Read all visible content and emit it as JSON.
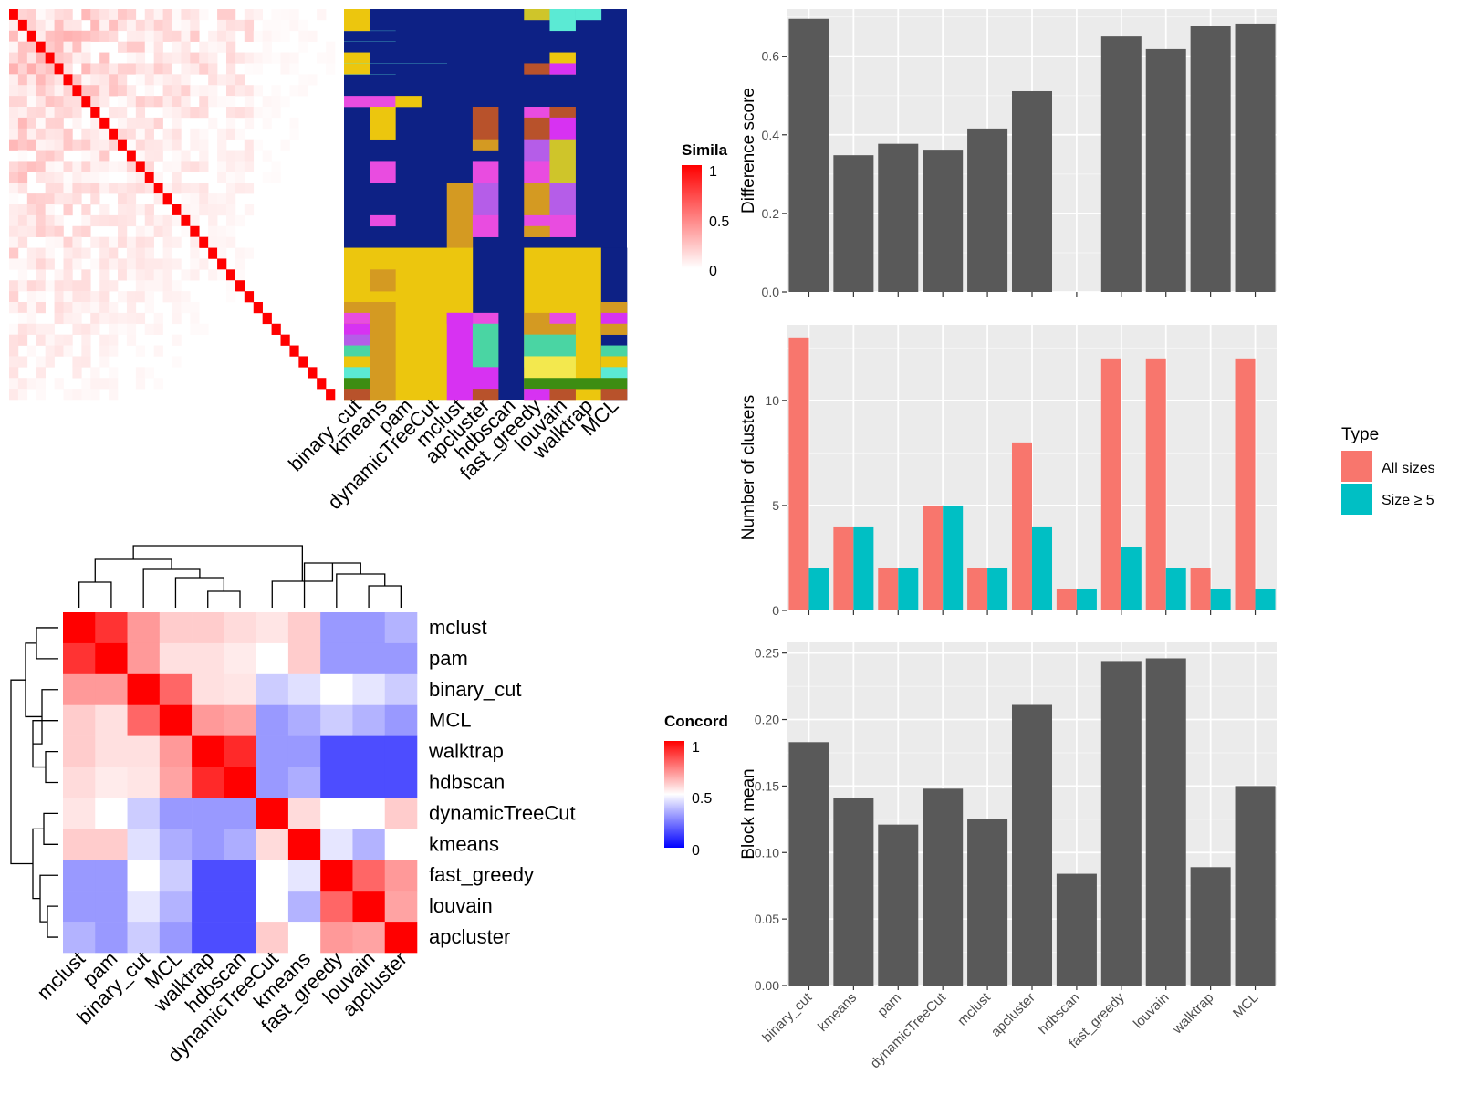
{
  "chart_data": [
    {
      "type": "heatmap",
      "name": "similarity-matrix",
      "legend_title": "Similarity",
      "legend_title_visible": "Simila",
      "legend_ticks": [
        "1",
        "0.5",
        "0"
      ],
      "scale": {
        "low": "#ffffff",
        "high": "#ff0000",
        "min": 0,
        "max": 1
      },
      "n_cells": 36
    },
    {
      "type": "heatmap",
      "name": "cluster-assignments",
      "columns": [
        "binary_cut",
        "kmeans",
        "pam",
        "dynamicTreeCut",
        "mclust",
        "apcluster",
        "hdbscan",
        "fast_greedy",
        "louvain",
        "walktrap",
        "MCL"
      ]
    },
    {
      "type": "heatmap",
      "name": "concordance",
      "legend_title": "Concordance",
      "legend_title_visible": "Concord",
      "legend_ticks": [
        "1",
        "0.5",
        "0"
      ],
      "scale": {
        "low": "#0000ff",
        "mid": "#ffffff",
        "high": "#ff0000",
        "min": 0,
        "max": 1
      },
      "rows": [
        "mclust",
        "pam",
        "binary_cut",
        "MCL",
        "walktrap",
        "hdbscan",
        "dynamicTreeCut",
        "kmeans",
        "fast_greedy",
        "louvain",
        "apcluster"
      ],
      "columns": [
        "mclust",
        "pam",
        "binary_cut",
        "MCL",
        "walktrap",
        "hdbscan",
        "dynamicTreeCut",
        "kmeans",
        "fast_greedy",
        "louvain",
        "apcluster"
      ],
      "values": [
        [
          1.0,
          0.9,
          0.7,
          0.6,
          0.6,
          0.57,
          0.55,
          0.6,
          0.3,
          0.3,
          0.35
        ],
        [
          0.9,
          1.0,
          0.7,
          0.56,
          0.56,
          0.54,
          0.5,
          0.6,
          0.3,
          0.3,
          0.3
        ],
        [
          0.7,
          0.7,
          1.0,
          0.8,
          0.56,
          0.55,
          0.4,
          0.44,
          0.5,
          0.45,
          0.4
        ],
        [
          0.6,
          0.56,
          0.8,
          1.0,
          0.7,
          0.68,
          0.3,
          0.34,
          0.4,
          0.35,
          0.3
        ],
        [
          0.6,
          0.56,
          0.56,
          0.7,
          1.0,
          0.92,
          0.3,
          0.3,
          0.15,
          0.15,
          0.15
        ],
        [
          0.57,
          0.54,
          0.55,
          0.68,
          0.92,
          1.0,
          0.3,
          0.34,
          0.15,
          0.15,
          0.15
        ],
        [
          0.55,
          0.5,
          0.4,
          0.3,
          0.3,
          0.3,
          1.0,
          0.57,
          0.5,
          0.5,
          0.6
        ],
        [
          0.6,
          0.6,
          0.44,
          0.34,
          0.3,
          0.34,
          0.57,
          1.0,
          0.45,
          0.35,
          0.5
        ],
        [
          0.3,
          0.3,
          0.5,
          0.4,
          0.15,
          0.15,
          0.5,
          0.45,
          1.0,
          0.8,
          0.7
        ],
        [
          0.3,
          0.3,
          0.45,
          0.35,
          0.15,
          0.15,
          0.5,
          0.35,
          0.8,
          1.0,
          0.68
        ],
        [
          0.35,
          0.3,
          0.4,
          0.3,
          0.15,
          0.15,
          0.6,
          0.5,
          0.7,
          0.68,
          1.0
        ]
      ]
    },
    {
      "type": "bar",
      "name": "difference-score",
      "categories": [
        "binary_cut",
        "kmeans",
        "pam",
        "dynamicTreeCut",
        "mclust",
        "apcluster",
        "hdbscan",
        "fast_greedy",
        "louvain",
        "walktrap",
        "MCL"
      ],
      "values": [
        0.695,
        0.348,
        0.377,
        0.362,
        0.416,
        0.511,
        null,
        0.65,
        0.618,
        0.678,
        0.683
      ],
      "ylabel": "Difference score",
      "ylim": [
        0,
        0.72
      ],
      "yticks": [
        "0.0",
        "0.2",
        "0.4",
        "0.6"
      ],
      "yticks_values": [
        0,
        0.2,
        0.4,
        0.6
      ],
      "grid": true,
      "bar_color": "#595959"
    },
    {
      "type": "bar",
      "name": "number-of-clusters",
      "categories": [
        "binary_cut",
        "kmeans",
        "pam",
        "dynamicTreeCut",
        "mclust",
        "apcluster",
        "hdbscan",
        "fast_greedy",
        "louvain",
        "walktrap",
        "MCL"
      ],
      "series": [
        {
          "name": "All sizes",
          "color": "#f8766d",
          "values": [
            13,
            4,
            2,
            5,
            2,
            8,
            1,
            12,
            12,
            2,
            12
          ]
        },
        {
          "name": "Size ≥ 5",
          "color": "#00bfc4",
          "values": [
            2,
            4,
            2,
            5,
            2,
            4,
            1,
            3,
            2,
            1,
            1
          ]
        }
      ],
      "ylabel": "Number of clusters",
      "ylim": [
        0,
        13.6
      ],
      "yticks": [
        "0",
        "5",
        "10"
      ],
      "yticks_values": [
        0,
        5,
        10
      ],
      "legend_title": "Type",
      "legend_position": "right",
      "grid": true
    },
    {
      "type": "bar",
      "name": "block-mean",
      "categories": [
        "binary_cut",
        "kmeans",
        "pam",
        "dynamicTreeCut",
        "mclust",
        "apcluster",
        "hdbscan",
        "fast_greedy",
        "louvain",
        "walktrap",
        "MCL"
      ],
      "values": [
        0.183,
        0.141,
        0.121,
        0.148,
        0.125,
        0.211,
        0.084,
        0.244,
        0.246,
        0.089,
        0.15
      ],
      "ylabel": "Block mean",
      "ylim": [
        0,
        0.258
      ],
      "yticks": [
        "0.00",
        "0.05",
        "0.10",
        "0.15",
        "0.20",
        "0.25"
      ],
      "yticks_values": [
        0,
        0.05,
        0.1,
        0.15,
        0.2,
        0.25
      ],
      "grid": true,
      "bar_color": "#595959"
    }
  ]
}
